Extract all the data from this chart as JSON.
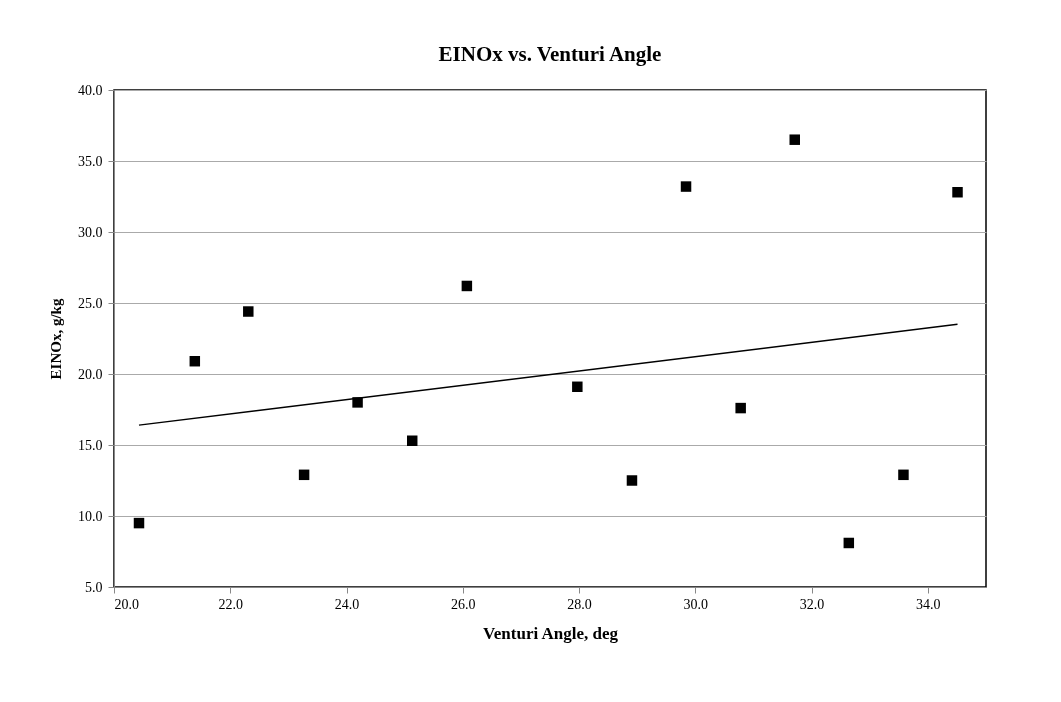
{
  "chart_data": {
    "type": "scatter",
    "title": "EINOx  vs.  Venturi  Angle",
    "xlabel": "Venturi Angle, deg",
    "ylabel": "EINOx,  g/kg",
    "x": [
      20.43,
      21.39,
      22.31,
      23.27,
      24.19,
      25.13,
      26.07,
      27.97,
      28.91,
      29.84,
      30.78,
      31.71,
      32.64,
      33.58,
      34.51
    ],
    "values": [
      9.5,
      20.9,
      24.4,
      12.9,
      18.0,
      15.3,
      26.2,
      19.1,
      12.5,
      33.2,
      17.6,
      36.5,
      8.1,
      12.9,
      32.8
    ],
    "color": "#000000",
    "marker": "square",
    "series": [
      {
        "type": "line",
        "x": [
          20.43,
          34.51
        ],
        "values": [
          16.4,
          23.5
        ],
        "color": "#000000",
        "line_style": "solid",
        "marker": "none"
      }
    ],
    "xlim": [
      20,
      35
    ],
    "ylim": [
      5,
      40
    ],
    "xticks": [
      {
        "value": 20,
        "label": "20.0"
      },
      {
        "value": 22,
        "label": "22.0"
      },
      {
        "value": 24,
        "label": "24.0"
      },
      {
        "value": 26,
        "label": "26.0"
      },
      {
        "value": 28,
        "label": "28.0"
      },
      {
        "value": 30,
        "label": "30.0"
      },
      {
        "value": 32,
        "label": "32.0"
      },
      {
        "value": 34,
        "label": "34.0"
      }
    ],
    "yticks": [
      {
        "value": 5,
        "label": "5.0"
      },
      {
        "value": 10,
        "label": "10.0"
      },
      {
        "value": 15,
        "label": "15.0"
      },
      {
        "value": 20,
        "label": "20.0"
      },
      {
        "value": 25,
        "label": "25.0"
      },
      {
        "value": 30,
        "label": "30.0"
      },
      {
        "value": 35,
        "label": "35.0"
      },
      {
        "value": 40,
        "label": "40.0"
      }
    ],
    "grid": "y"
  }
}
